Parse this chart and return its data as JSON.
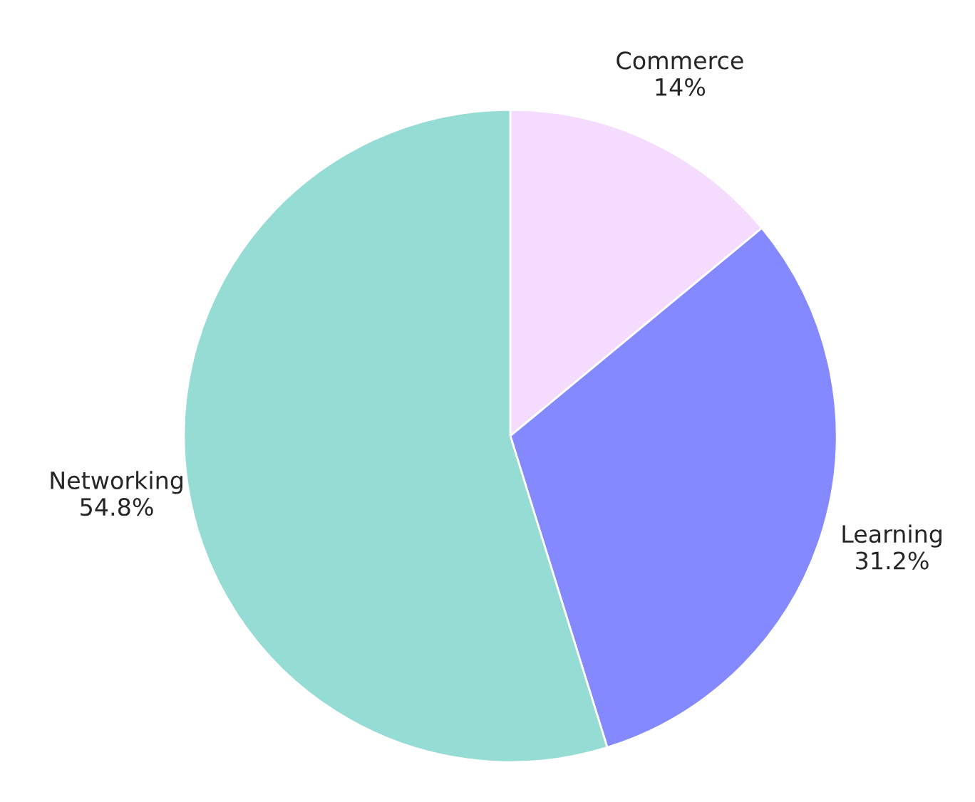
{
  "chart_data": {
    "type": "pie",
    "categories": [
      "Commerce",
      "Learning",
      "Networking"
    ],
    "values": [
      14,
      31.2,
      54.8
    ],
    "value_labels": [
      "14%",
      "31.2%",
      "54.8%"
    ],
    "colors": [
      "#f5dcfe",
      "#8589ff",
      "#95dcd4"
    ]
  }
}
